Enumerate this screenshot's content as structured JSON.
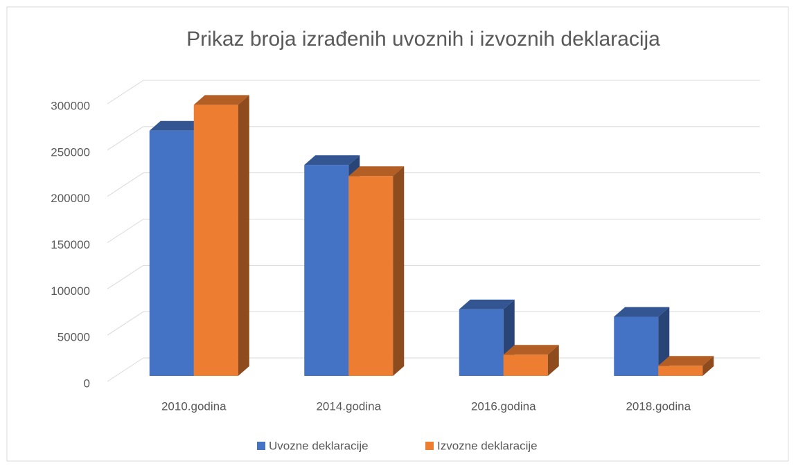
{
  "chart_data": {
    "type": "bar3d",
    "title": "Prikaz broja izrađenih uvoznih i izvoznih deklaracija",
    "categories": [
      "2010.godina",
      "2014.godina",
      "2016.godina",
      "2018.godina"
    ],
    "series": [
      {
        "name": "Uvozne deklaracije",
        "color": "#4472c4",
        "values": [
          265000,
          228000,
          72000,
          64000
        ]
      },
      {
        "name": "Izvozne deklaracije",
        "color": "#ed7d31",
        "values": [
          293000,
          216000,
          23000,
          11000
        ]
      }
    ],
    "ylim": [
      0,
      300000
    ],
    "yticks": [
      0,
      50000,
      100000,
      150000,
      200000,
      250000,
      300000
    ],
    "grid": true,
    "legend": "bottom"
  }
}
